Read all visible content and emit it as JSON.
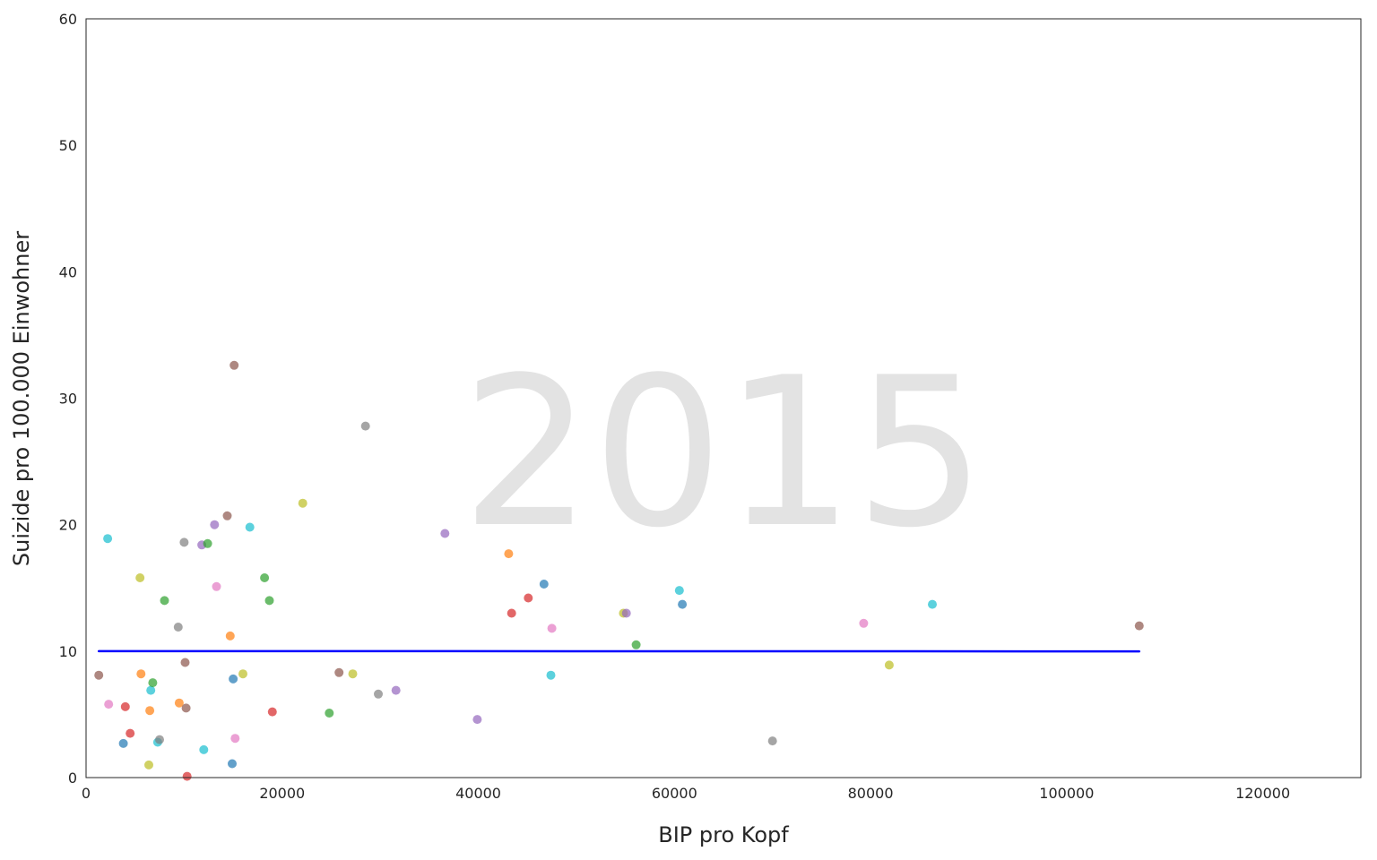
{
  "chart_data": {
    "type": "scatter",
    "xlabel": "BIP pro Kopf",
    "ylabel": "Suizide pro 100.000 Einwohner",
    "annotation": "2015",
    "xlim": [
      0,
      130000
    ],
    "ylim": [
      0,
      60
    ],
    "xticks": [
      0,
      20000,
      40000,
      60000,
      80000,
      100000,
      120000
    ],
    "yticks": [
      0,
      10,
      20,
      30,
      40,
      50,
      60
    ],
    "grid": false,
    "legend": "none",
    "trend_line": {
      "x": [
        1300,
        107400
      ],
      "y": [
        10.0,
        9.98
      ],
      "color": "#0000ff"
    },
    "points": [
      {
        "x": 1300,
        "y": 8.1,
        "color": "#8c564b"
      },
      {
        "x": 2200,
        "y": 18.9,
        "color": "#17becf"
      },
      {
        "x": 2300,
        "y": 5.8,
        "color": "#e377c2"
      },
      {
        "x": 3800,
        "y": 2.7,
        "color": "#1f77b4"
      },
      {
        "x": 4000,
        "y": 5.6,
        "color": "#d62728"
      },
      {
        "x": 4500,
        "y": 3.5,
        "color": "#d62728"
      },
      {
        "x": 5500,
        "y": 15.8,
        "color": "#bcbd22"
      },
      {
        "x": 5600,
        "y": 8.2,
        "color": "#ff7f0e"
      },
      {
        "x": 6400,
        "y": 1.0,
        "color": "#bcbd22"
      },
      {
        "x": 6500,
        "y": 5.3,
        "color": "#ff7f0e"
      },
      {
        "x": 6600,
        "y": 6.9,
        "color": "#17becf"
      },
      {
        "x": 6800,
        "y": 7.5,
        "color": "#2ca02c"
      },
      {
        "x": 7300,
        "y": 2.8,
        "color": "#17becf"
      },
      {
        "x": 7500,
        "y": 3.0,
        "color": "#7f7f7f"
      },
      {
        "x": 8000,
        "y": 14.0,
        "color": "#2ca02c"
      },
      {
        "x": 9400,
        "y": 11.9,
        "color": "#7f7f7f"
      },
      {
        "x": 9500,
        "y": 5.9,
        "color": "#ff7f0e"
      },
      {
        "x": 10000,
        "y": 18.6,
        "color": "#7f7f7f"
      },
      {
        "x": 10100,
        "y": 9.1,
        "color": "#8c564b"
      },
      {
        "x": 10200,
        "y": 5.5,
        "color": "#8c564b"
      },
      {
        "x": 10300,
        "y": 0.1,
        "color": "#d62728"
      },
      {
        "x": 11800,
        "y": 18.4,
        "color": "#9467bd"
      },
      {
        "x": 12000,
        "y": 2.2,
        "color": "#17becf"
      },
      {
        "x": 12400,
        "y": 18.5,
        "color": "#2ca02c"
      },
      {
        "x": 13100,
        "y": 20.0,
        "color": "#9467bd"
      },
      {
        "x": 13300,
        "y": 15.1,
        "color": "#e377c2"
      },
      {
        "x": 14400,
        "y": 20.7,
        "color": "#8c564b"
      },
      {
        "x": 14700,
        "y": 11.2,
        "color": "#ff7f0e"
      },
      {
        "x": 14900,
        "y": 1.1,
        "color": "#1f77b4"
      },
      {
        "x": 15000,
        "y": 7.8,
        "color": "#1f77b4"
      },
      {
        "x": 15100,
        "y": 32.6,
        "color": "#8c564b"
      },
      {
        "x": 15200,
        "y": 3.1,
        "color": "#e377c2"
      },
      {
        "x": 16000,
        "y": 8.2,
        "color": "#bcbd22"
      },
      {
        "x": 16700,
        "y": 19.8,
        "color": "#17becf"
      },
      {
        "x": 18200,
        "y": 15.8,
        "color": "#2ca02c"
      },
      {
        "x": 18700,
        "y": 14.0,
        "color": "#2ca02c"
      },
      {
        "x": 19000,
        "y": 5.2,
        "color": "#d62728"
      },
      {
        "x": 22100,
        "y": 21.7,
        "color": "#bcbd22"
      },
      {
        "x": 24800,
        "y": 5.1,
        "color": "#2ca02c"
      },
      {
        "x": 25800,
        "y": 8.3,
        "color": "#8c564b"
      },
      {
        "x": 27200,
        "y": 8.2,
        "color": "#bcbd22"
      },
      {
        "x": 28500,
        "y": 27.8,
        "color": "#7f7f7f"
      },
      {
        "x": 29800,
        "y": 6.6,
        "color": "#7f7f7f"
      },
      {
        "x": 31600,
        "y": 6.9,
        "color": "#9467bd"
      },
      {
        "x": 36600,
        "y": 19.3,
        "color": "#9467bd"
      },
      {
        "x": 39900,
        "y": 4.6,
        "color": "#9467bd"
      },
      {
        "x": 43100,
        "y": 17.7,
        "color": "#ff7f0e"
      },
      {
        "x": 43400,
        "y": 13.0,
        "color": "#d62728"
      },
      {
        "x": 45100,
        "y": 14.2,
        "color": "#d62728"
      },
      {
        "x": 46700,
        "y": 15.3,
        "color": "#1f77b4"
      },
      {
        "x": 47400,
        "y": 8.1,
        "color": "#17becf"
      },
      {
        "x": 47500,
        "y": 11.8,
        "color": "#e377c2"
      },
      {
        "x": 54800,
        "y": 13.0,
        "color": "#bcbd22"
      },
      {
        "x": 55100,
        "y": 13.0,
        "color": "#9467bd"
      },
      {
        "x": 56100,
        "y": 10.5,
        "color": "#2ca02c"
      },
      {
        "x": 60500,
        "y": 14.8,
        "color": "#17becf"
      },
      {
        "x": 60800,
        "y": 13.7,
        "color": "#1f77b4"
      },
      {
        "x": 70000,
        "y": 2.9,
        "color": "#7f7f7f"
      },
      {
        "x": 79300,
        "y": 12.2,
        "color": "#e377c2"
      },
      {
        "x": 81900,
        "y": 8.9,
        "color": "#bcbd22"
      },
      {
        "x": 86300,
        "y": 13.7,
        "color": "#17becf"
      },
      {
        "x": 107400,
        "y": 12.0,
        "color": "#8c564b"
      }
    ]
  }
}
